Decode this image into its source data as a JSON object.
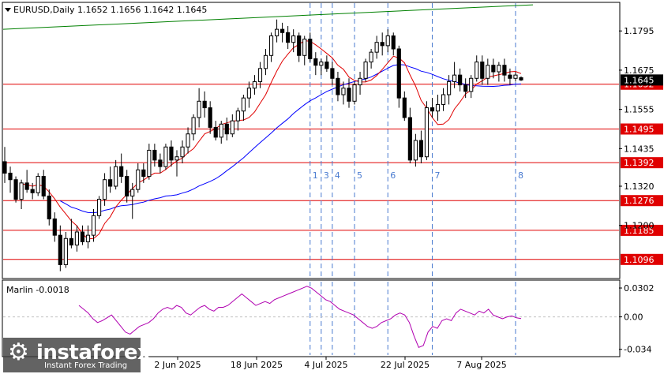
{
  "window": {
    "symbol_header": "EURUSD,Daily  1.1652 1.1656 1.1642 1.1645",
    "current_price": "1.1645"
  },
  "chart_data": [
    {
      "type": "candlestick",
      "title": "EURUSD,Daily",
      "ohlc_header": {
        "open": 1.1652,
        "high": 1.1656,
        "low": 1.1642,
        "close": 1.1645
      },
      "ylim": [
        1.104,
        1.188
      ],
      "y_ticks": [
        "1.1795",
        "1.1675",
        "1.1555",
        "1.1435",
        "1.1320",
        "1.1200"
      ],
      "x_ticks": [
        "2 Jun 2025",
        "18 Jun 2025",
        "4 Jul 2025",
        "22 Jul 2025",
        "7 Aug 2025"
      ],
      "horizontal_levels": [
        {
          "label": "1.1632",
          "value": 1.1632,
          "color": "#e00000"
        },
        {
          "label": "1.1495",
          "value": 1.1495,
          "color": "#e00000"
        },
        {
          "label": "1.1392",
          "value": 1.1392,
          "color": "#e00000"
        },
        {
          "label": "1.1276",
          "value": 1.1276,
          "color": "#e00000"
        },
        {
          "label": "1.1185",
          "value": 1.1185,
          "color": "#e00000"
        },
        {
          "label": "1.1096",
          "value": 1.1096,
          "color": "#e00000"
        }
      ],
      "vertical_markers": [
        "1",
        "3",
        "4",
        "5",
        "6",
        "7",
        "8"
      ],
      "candles": [
        [
          1.1395,
          1.144,
          1.133,
          1.136
        ],
        [
          1.136,
          1.138,
          1.13,
          1.134
        ],
        [
          1.134,
          1.135,
          1.127,
          1.128
        ],
        [
          1.128,
          1.134,
          1.125,
          1.133
        ],
        [
          1.133,
          1.137,
          1.13,
          1.131
        ],
        [
          1.131,
          1.133,
          1.128,
          1.13
        ],
        [
          1.13,
          1.136,
          1.129,
          1.135
        ],
        [
          1.135,
          1.137,
          1.128,
          1.129
        ],
        [
          1.129,
          1.131,
          1.12,
          1.122
        ],
        [
          1.122,
          1.124,
          1.115,
          1.117
        ],
        [
          1.117,
          1.12,
          1.106,
          1.108
        ],
        [
          1.108,
          1.118,
          1.107,
          1.116
        ],
        [
          1.116,
          1.122,
          1.113,
          1.114
        ],
        [
          1.114,
          1.12,
          1.112,
          1.118
        ],
        [
          1.118,
          1.12,
          1.114,
          1.115
        ],
        [
          1.115,
          1.12,
          1.113,
          1.117
        ],
        [
          1.117,
          1.125,
          1.115,
          1.123
        ],
        [
          1.123,
          1.129,
          1.122,
          1.128
        ],
        [
          1.128,
          1.136,
          1.126,
          1.134
        ],
        [
          1.134,
          1.138,
          1.13,
          1.132
        ],
        [
          1.132,
          1.14,
          1.131,
          1.138
        ],
        [
          1.138,
          1.142,
          1.133,
          1.135
        ],
        [
          1.135,
          1.137,
          1.127,
          1.129
        ],
        [
          1.129,
          1.133,
          1.122,
          1.131
        ],
        [
          1.131,
          1.139,
          1.13,
          1.137
        ],
        [
          1.137,
          1.139,
          1.133,
          1.135
        ],
        [
          1.135,
          1.145,
          1.134,
          1.143
        ],
        [
          1.143,
          1.145,
          1.138,
          1.14
        ],
        [
          1.14,
          1.142,
          1.136,
          1.138
        ],
        [
          1.138,
          1.145,
          1.137,
          1.144
        ],
        [
          1.144,
          1.146,
          1.138,
          1.14
        ],
        [
          1.14,
          1.143,
          1.135,
          1.141
        ],
        [
          1.141,
          1.146,
          1.139,
          1.144
        ],
        [
          1.144,
          1.15,
          1.142,
          1.148
        ],
        [
          1.148,
          1.154,
          1.146,
          1.153
        ],
        [
          1.153,
          1.162,
          1.15,
          1.158
        ],
        [
          1.158,
          1.161,
          1.153,
          1.156
        ],
        [
          1.156,
          1.158,
          1.148,
          1.15
        ],
        [
          1.15,
          1.152,
          1.146,
          1.147
        ],
        [
          1.147,
          1.152,
          1.145,
          1.151
        ],
        [
          1.151,
          1.153,
          1.146,
          1.148
        ],
        [
          1.148,
          1.154,
          1.147,
          1.152
        ],
        [
          1.152,
          1.156,
          1.149,
          1.155
        ],
        [
          1.155,
          1.16,
          1.152,
          1.159
        ],
        [
          1.159,
          1.164,
          1.156,
          1.162
        ],
        [
          1.162,
          1.166,
          1.16,
          1.164
        ],
        [
          1.164,
          1.17,
          1.162,
          1.168
        ],
        [
          1.168,
          1.174,
          1.166,
          1.172
        ],
        [
          1.172,
          1.179,
          1.17,
          1.178
        ],
        [
          1.178,
          1.183,
          1.176,
          1.18
        ],
        [
          1.18,
          1.182,
          1.176,
          1.179
        ],
        [
          1.179,
          1.181,
          1.174,
          1.176
        ],
        [
          1.176,
          1.18,
          1.173,
          1.178
        ],
        [
          1.178,
          1.179,
          1.17,
          1.172
        ],
        [
          1.172,
          1.178,
          1.169,
          1.177
        ],
        [
          1.177,
          1.179,
          1.17,
          1.171
        ],
        [
          1.171,
          1.173,
          1.166,
          1.169
        ],
        [
          1.169,
          1.171,
          1.166,
          1.17
        ],
        [
          1.17,
          1.172,
          1.167,
          1.168
        ],
        [
          1.168,
          1.17,
          1.163,
          1.165
        ],
        [
          1.165,
          1.167,
          1.158,
          1.16
        ],
        [
          1.16,
          1.164,
          1.157,
          1.162
        ],
        [
          1.162,
          1.165,
          1.156,
          1.158
        ],
        [
          1.158,
          1.164,
          1.157,
          1.163
        ],
        [
          1.163,
          1.167,
          1.16,
          1.165
        ],
        [
          1.165,
          1.171,
          1.164,
          1.17
        ],
        [
          1.17,
          1.174,
          1.168,
          1.173
        ],
        [
          1.173,
          1.178,
          1.171,
          1.176
        ],
        [
          1.176,
          1.179,
          1.172,
          1.175
        ],
        [
          1.175,
          1.18,
          1.173,
          1.178
        ],
        [
          1.178,
          1.179,
          1.172,
          1.174
        ],
        [
          1.174,
          1.175,
          1.156,
          1.159
        ],
        [
          1.159,
          1.161,
          1.152,
          1.153
        ],
        [
          1.153,
          1.156,
          1.139,
          1.14
        ],
        [
          1.14,
          1.148,
          1.138,
          1.146
        ],
        [
          1.146,
          1.149,
          1.139,
          1.141
        ],
        [
          1.141,
          1.158,
          1.14,
          1.156
        ],
        [
          1.156,
          1.159,
          1.153,
          1.155
        ],
        [
          1.155,
          1.16,
          1.152,
          1.157
        ],
        [
          1.157,
          1.162,
          1.155,
          1.16
        ],
        [
          1.16,
          1.166,
          1.157,
          1.164
        ],
        [
          1.164,
          1.17,
          1.162,
          1.166
        ],
        [
          1.166,
          1.168,
          1.161,
          1.163
        ],
        [
          1.163,
          1.165,
          1.159,
          1.161
        ],
        [
          1.161,
          1.166,
          1.159,
          1.165
        ],
        [
          1.165,
          1.172,
          1.164,
          1.17
        ],
        [
          1.17,
          1.172,
          1.163,
          1.165
        ],
        [
          1.165,
          1.171,
          1.163,
          1.169
        ],
        [
          1.169,
          1.171,
          1.165,
          1.167
        ],
        [
          1.167,
          1.17,
          1.164,
          1.169
        ],
        [
          1.169,
          1.171,
          1.164,
          1.166
        ],
        [
          1.166,
          1.168,
          1.163,
          1.165
        ],
        [
          1.165,
          1.167,
          1.164,
          1.166
        ],
        [
          1.1652,
          1.1656,
          1.1642,
          1.1645
        ]
      ]
    },
    {
      "type": "line",
      "title": "Marlin -0.0018",
      "ylim": [
        -0.04,
        0.036
      ],
      "y_ticks": [
        "0.0302",
        "0.00",
        "-0.034"
      ],
      "series": [
        {
          "name": "Marlin",
          "color": "#b000b0",
          "values": [
            0.012,
            0.008,
            0.004,
            -0.002,
            -0.006,
            -0.004,
            -0.001,
            0.002,
            -0.004,
            -0.01,
            -0.016,
            -0.018,
            -0.014,
            -0.01,
            -0.008,
            -0.006,
            -0.002,
            0.004,
            0.008,
            0.01,
            0.008,
            0.012,
            0.01,
            0.004,
            0.002,
            0.006,
            0.01,
            0.012,
            0.008,
            0.006,
            0.01,
            0.01,
            0.012,
            0.016,
            0.02,
            0.024,
            0.02,
            0.016,
            0.012,
            0.014,
            0.016,
            0.014,
            0.018,
            0.02,
            0.022,
            0.024,
            0.026,
            0.028,
            0.03,
            0.032,
            0.03,
            0.026,
            0.022,
            0.018,
            0.016,
            0.012,
            0.008,
            0.006,
            0.004,
            0.002,
            -0.002,
            -0.006,
            -0.01,
            -0.012,
            -0.01,
            -0.006,
            -0.004,
            -0.002,
            0.002,
            0.004,
            0.002,
            -0.006,
            -0.02,
            -0.032,
            -0.03,
            -0.016,
            -0.01,
            -0.012,
            -0.004,
            -0.002,
            -0.004,
            0.004,
            0.008,
            0.006,
            0.004,
            0.002,
            0.006,
            0.004,
            0.008,
            0.002,
            0.0,
            -0.002,
            0.0,
            0.001,
            -0.001,
            -0.0018
          ]
        }
      ]
    }
  ],
  "watermark": {
    "name": "instaforex",
    "tagline": "Instant Forex Trading"
  },
  "colors": {
    "bull": "#ffffff",
    "bear": "#000000",
    "sma_blue": "#0000ff",
    "ma_red": "#e00000",
    "trend_green": "#008000",
    "marker_blue": "#4a7bd0"
  }
}
